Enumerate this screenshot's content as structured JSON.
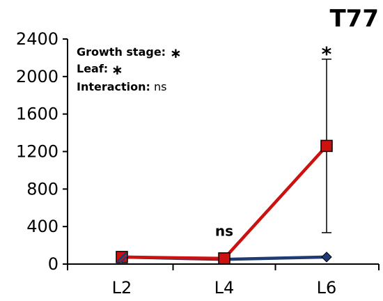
{
  "chart_data": {
    "type": "line",
    "title": "T77",
    "xlabel": "",
    "ylabel": "",
    "categories": [
      "L2",
      "L4",
      "L6"
    ],
    "ylim": [
      0,
      2400
    ],
    "yticks": [
      0,
      400,
      800,
      1200,
      1600,
      2000,
      2400
    ],
    "grid": false,
    "legend": "none",
    "series": [
      {
        "color": "#1f3b73",
        "marker": "diamond",
        "values": [
          75,
          50,
          75
        ]
      },
      {
        "color": "#cc1111",
        "marker": "square",
        "values": [
          75,
          60,
          1260
        ],
        "error": [
          null,
          null,
          [
            335,
            2185
          ]
        ]
      }
    ],
    "stats": {
      "growth_stage": {
        "label": "Growth stage:",
        "value": "∗"
      },
      "leaf": {
        "label": "Leaf:",
        "value": "∗"
      },
      "interaction": {
        "label": "Interaction:",
        "value": "ns"
      }
    },
    "annotations": [
      {
        "category": "L4",
        "text": "ns",
        "value": 300
      },
      {
        "category": "L6",
        "text": "*",
        "value": 2200
      }
    ]
  }
}
